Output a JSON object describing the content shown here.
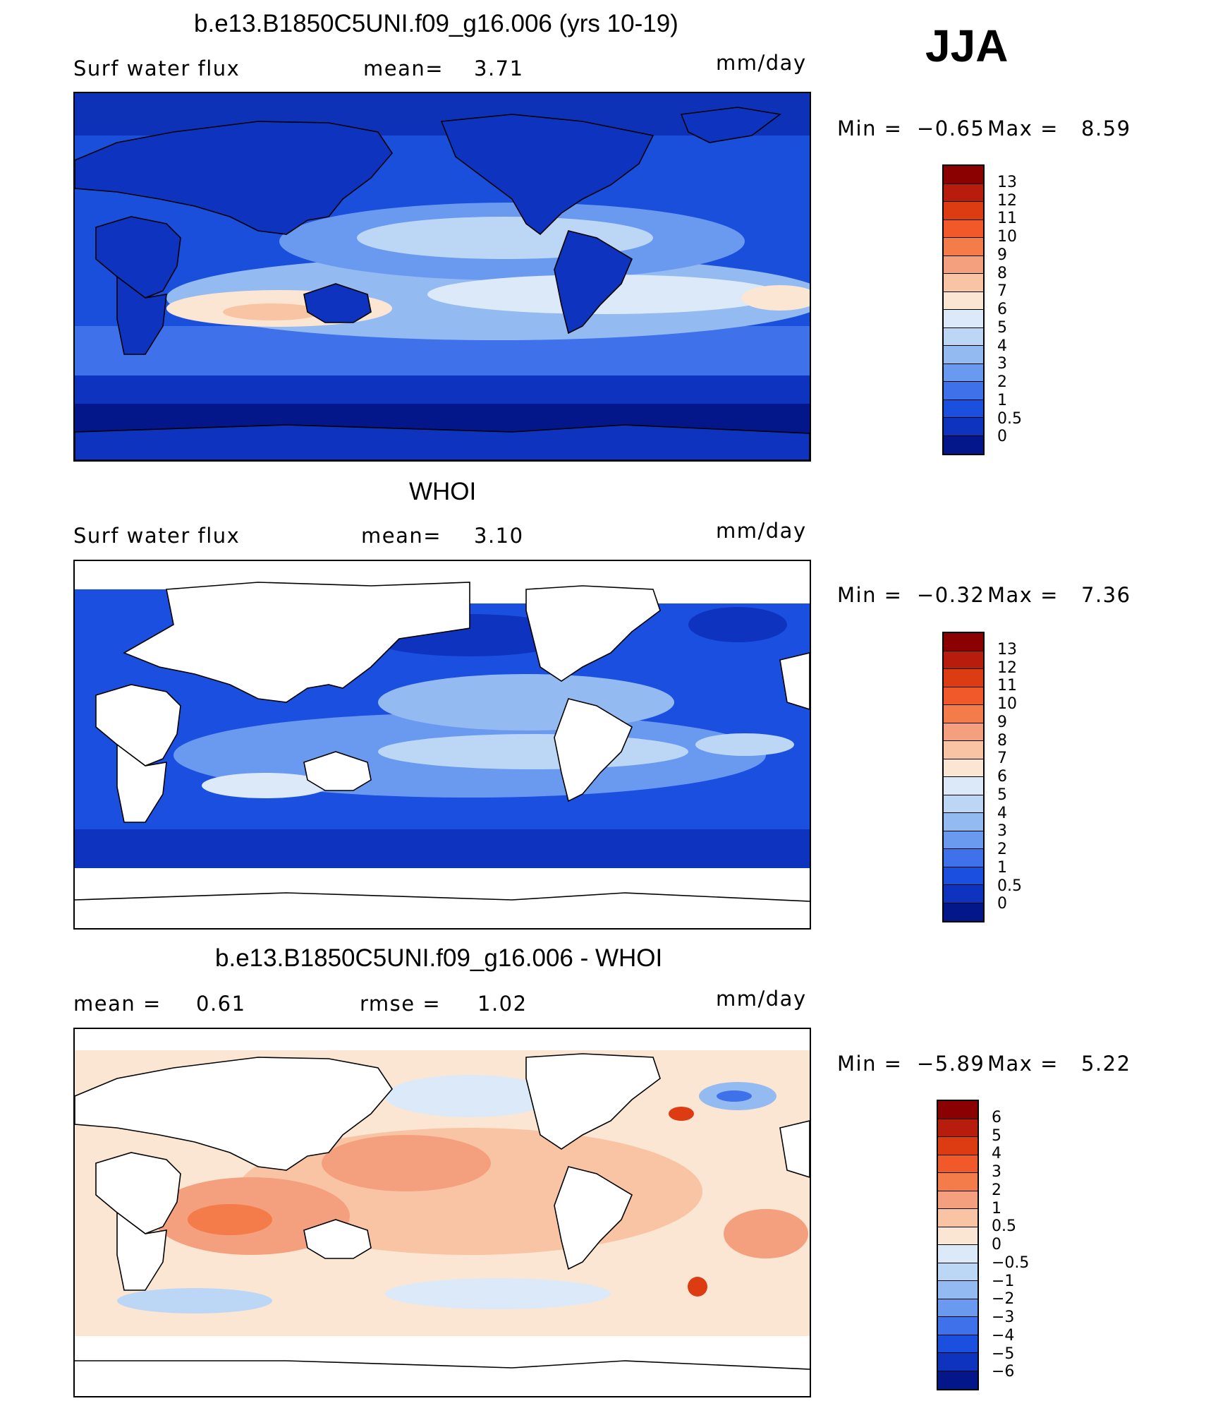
{
  "season": "JJA",
  "panels": [
    {
      "id": "model",
      "title": "b.e13.B1850C5UNI.f09_g16.006 (yrs 10-19)",
      "left_label": "Surf water flux",
      "middle_label": "mean=",
      "middle_value": "3.71",
      "units": "mm/day",
      "min_label": "Min =",
      "min_value": "−0.65",
      "max_label": "Max =",
      "max_value": "8.59",
      "colorbar": {
        "labels": [
          "13",
          "12",
          "11",
          "10",
          "9",
          "8",
          "7",
          "6",
          "5",
          "4",
          "3",
          "2",
          "1",
          "0.5",
          "0"
        ],
        "colors": [
          "#8b0000",
          "#b71c0c",
          "#dd3b12",
          "#f2592a",
          "#f47b4a",
          "#f4a07e",
          "#f8c4a4",
          "#fbe6d4",
          "#dce9f8",
          "#bcd6f6",
          "#94baf2",
          "#6a9af0",
          "#3f72ea",
          "#1b4fe0",
          "#0e33bf",
          "#03168a"
        ]
      }
    },
    {
      "id": "obs",
      "title": "WHOI",
      "left_label": "Surf water flux",
      "middle_label": "mean=",
      "middle_value": "3.10",
      "units": "mm/day",
      "min_label": "Min =",
      "min_value": "−0.32",
      "max_label": "Max =",
      "max_value": "7.36",
      "colorbar": {
        "labels": [
          "13",
          "12",
          "11",
          "10",
          "9",
          "8",
          "7",
          "6",
          "5",
          "4",
          "3",
          "2",
          "1",
          "0.5",
          "0"
        ],
        "colors": [
          "#8b0000",
          "#b71c0c",
          "#dd3b12",
          "#f2592a",
          "#f47b4a",
          "#f4a07e",
          "#f8c4a4",
          "#fbe6d4",
          "#dce9f8",
          "#bcd6f6",
          "#94baf2",
          "#6a9af0",
          "#3f72ea",
          "#1b4fe0",
          "#0e33bf",
          "#03168a"
        ]
      }
    },
    {
      "id": "diff",
      "title": "b.e13.B1850C5UNI.f09_g16.006 - WHOI",
      "left_label": "mean =",
      "left_value": "0.61",
      "middle_label": "rmse =",
      "middle_value": "1.02",
      "units": "mm/day",
      "min_label": "Min =",
      "min_value": "−5.89",
      "max_label": "Max =",
      "max_value": "5.22",
      "colorbar": {
        "labels": [
          "6",
          "5",
          "4",
          "3",
          "2",
          "1",
          "0.5",
          "0",
          "−0.5",
          "−1",
          "−2",
          "−3",
          "−4",
          "−5",
          "−6"
        ],
        "colors": [
          "#8b0000",
          "#b71c0c",
          "#dd3b12",
          "#f2592a",
          "#f47b4a",
          "#f4a07e",
          "#f8c4a4",
          "#fbe6d4",
          "#dce9f8",
          "#bcd6f6",
          "#94baf2",
          "#6a9af0",
          "#3f72ea",
          "#1b4fe0",
          "#0e33bf",
          "#03168a"
        ]
      }
    }
  ]
}
